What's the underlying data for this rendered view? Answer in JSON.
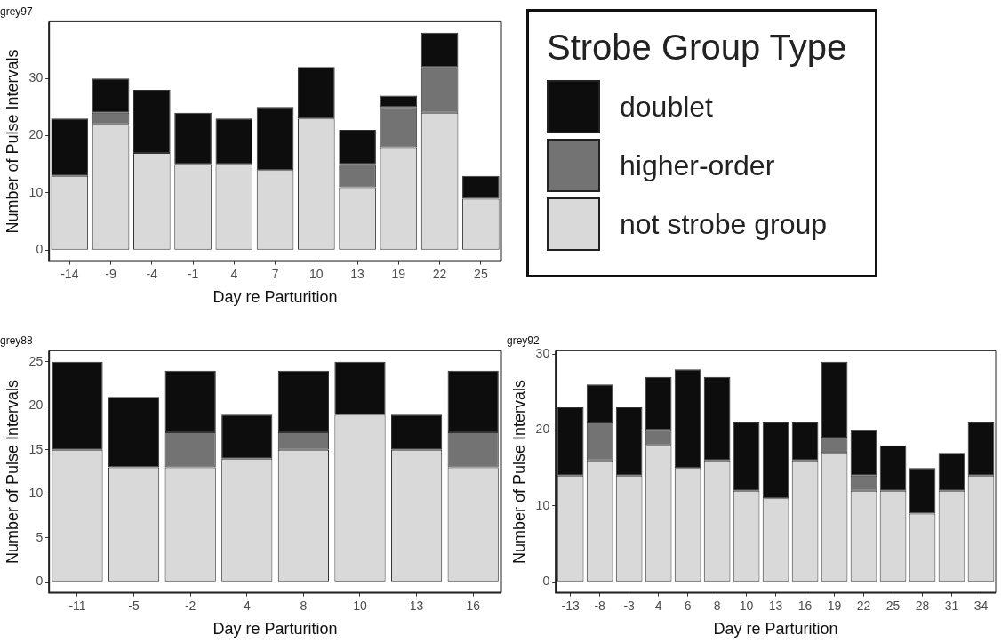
{
  "chart_data": [
    {
      "type": "bar",
      "title": "grey97",
      "xlabel": "Day re Parturition",
      "ylabel": "Number of Pulse Intervals",
      "stacked": true,
      "legend": "right",
      "legend_title": "Strobe Group Type",
      "categories": [
        "-14",
        "-9",
        "-4",
        "-1",
        "4",
        "7",
        "10",
        "13",
        "19",
        "22",
        "25"
      ],
      "series": [
        {
          "name": "not strobe group",
          "color": "#d9d9d9",
          "values": [
            13,
            22,
            17,
            15,
            15,
            14,
            23,
            11,
            18,
            24,
            9
          ]
        },
        {
          "name": "higher-order",
          "color": "#737373",
          "values": [
            0,
            2,
            0,
            0,
            0,
            0,
            0,
            4,
            7,
            8,
            0
          ]
        },
        {
          "name": "doublet",
          "color": "#0d0d0d",
          "values": [
            10,
            6,
            11,
            9,
            8,
            11,
            9,
            6,
            2,
            6,
            4
          ]
        }
      ],
      "ylim": [
        -1.9,
        39.9
      ],
      "yticks": [
        0,
        10,
        20,
        30
      ]
    },
    {
      "type": "bar",
      "title": "grey88",
      "xlabel": "Day re Parturition",
      "ylabel": "Number of Pulse Intervals",
      "stacked": true,
      "categories": [
        "-11",
        "-5",
        "-2",
        "4",
        "8",
        "10",
        "13",
        "16"
      ],
      "series": [
        {
          "color": "#d9d9d9",
          "values": [
            15,
            13,
            13,
            14,
            15,
            19,
            15,
            13
          ]
        },
        {
          "color": "#737373",
          "values": [
            0,
            0,
            4,
            0,
            2,
            0,
            0,
            4
          ]
        },
        {
          "color": "#0d0d0d",
          "values": [
            10,
            8,
            7,
            5,
            7,
            6,
            4,
            7
          ]
        }
      ],
      "ylim": [
        -1.25,
        26.25
      ],
      "yticks": [
        0,
        5,
        10,
        15,
        20,
        25
      ]
    },
    {
      "type": "bar",
      "title": "grey92",
      "xlabel": "Day re Parturition",
      "ylabel": "Number of Pulse Intervals",
      "stacked": true,
      "categories": [
        "-13",
        "-8",
        "-3",
        "4",
        "6",
        "8",
        "10",
        "13",
        "16",
        "19",
        "22",
        "25",
        "28",
        "31",
        "34"
      ],
      "series": [
        {
          "color": "#d9d9d9",
          "values": [
            14,
            16,
            14,
            18,
            15,
            16,
            12,
            11,
            16,
            17,
            12,
            12,
            9,
            12,
            14
          ]
        },
        {
          "color": "#737373",
          "values": [
            0,
            5,
            0,
            2,
            0,
            0,
            0,
            0,
            0,
            2,
            2,
            0,
            0,
            0,
            0
          ]
        },
        {
          "color": "#0d0d0d",
          "values": [
            9,
            5,
            9,
            7,
            13,
            11,
            9,
            10,
            5,
            10,
            6,
            6,
            6,
            5,
            7
          ]
        }
      ],
      "ylim": [
        -1.45,
        30.45
      ],
      "yticks": [
        0,
        10,
        20,
        30
      ]
    }
  ]
}
